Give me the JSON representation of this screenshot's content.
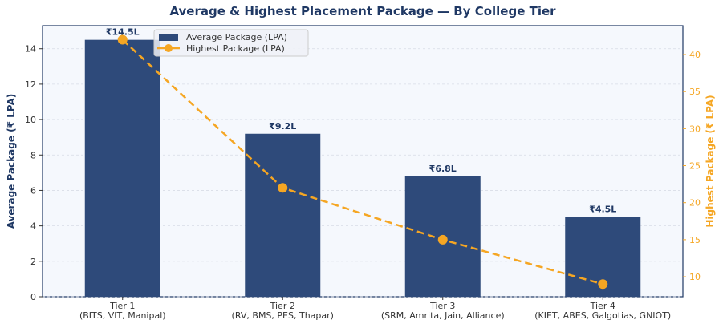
{
  "chart_data": {
    "type": "bar+line",
    "title": "Average & Highest Placement Package — By College Tier",
    "categories": [
      "Tier 1\n(BITS, VIT, Manipal)",
      "Tier 2\n(RV, BMS, PES, Thapar)",
      "Tier 3\n(SRM, Amrita, Jain, Alliance)",
      "Tier 4\n(KIET, ABES, Galgotias, GNIOT)"
    ],
    "series": [
      {
        "name": "Average Package (LPA)",
        "type": "bar",
        "axis": "left",
        "values": [
          14.5,
          9.2,
          6.8,
          4.5
        ],
        "labels": [
          "₹14.5L",
          "₹9.2L",
          "₹6.8L",
          "₹4.5L"
        ],
        "color": "#2e4a7a"
      },
      {
        "name": "Highest Package (LPA)",
        "type": "line",
        "axis": "right",
        "values": [
          42,
          22,
          15,
          9
        ],
        "color": "#f5a623",
        "style": "dashed",
        "marker": "circle"
      }
    ],
    "ylabel": "Average Package (₹ LPA)",
    "ylabel_right": "Highest Package (₹ LPA)",
    "ylim": [
      0,
      15.3
    ],
    "ylim_right": [
      7.3,
      43.9
    ],
    "yticks": [
      0,
      2,
      4,
      6,
      8,
      10,
      12,
      14
    ],
    "yticks_right": [
      10,
      15,
      20,
      25,
      30,
      35,
      40
    ],
    "grid": true,
    "legend": "top-left",
    "colors": {
      "title": "#1f3864",
      "right_axis": "#f5a623",
      "plot_bg": "#f5f8fd"
    }
  }
}
